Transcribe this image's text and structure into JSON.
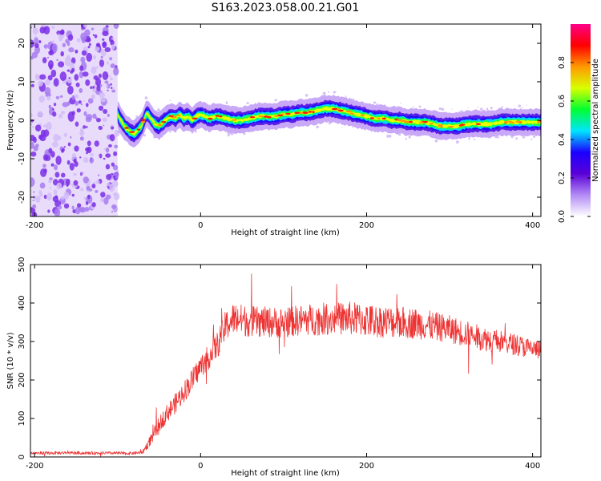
{
  "title": "S163.2023.058.00.21.G01",
  "chart_data": [
    {
      "type": "heatmap",
      "xlabel": "Height of straight line (km)",
      "ylabel": "Frequency (Hz)",
      "xlim": [
        -205,
        410
      ],
      "ylim": [
        -25,
        25
      ],
      "xticks": [
        -200,
        0,
        200,
        400
      ],
      "yticks": [
        -20,
        -10,
        0,
        10,
        20
      ],
      "colorbar": {
        "label": "Normalized spectral amplitude",
        "range": [
          0,
          1
        ],
        "ticks": [
          "0.0",
          "0.2",
          "0.4",
          "0.6",
          "0.8"
        ],
        "colormap": [
          "#ffffff",
          "#b38bf5",
          "#5a00d6",
          "#1a00ff",
          "#00e5ff",
          "#00ff30",
          "#d8ff00",
          "#ff9900",
          "#ff0000",
          "#ff0088"
        ]
      },
      "noise_region": {
        "x": [
          -205,
          -100
        ],
        "color": "#7a2ee6"
      },
      "ridge": {
        "x": [
          -100,
          -95,
          -90,
          -85,
          -80,
          -75,
          -70,
          -65,
          -60,
          -55,
          -50,
          -45,
          -40,
          -35,
          -30,
          -25,
          -20,
          -15,
          -10,
          -5,
          0,
          10,
          20,
          30,
          40,
          50,
          60,
          70,
          80,
          90,
          100,
          110,
          120,
          130,
          140,
          150,
          160,
          170,
          180,
          190,
          200,
          210,
          220,
          230,
          240,
          250,
          260,
          270,
          280,
          290,
          300,
          310,
          320,
          330,
          340,
          350,
          360,
          370,
          380,
          390,
          400,
          410
        ],
        "frequency": [
          1.5,
          -0.5,
          -2.0,
          -3.0,
          -3.5,
          -2.5,
          -1.0,
          2.0,
          0.5,
          -1.0,
          -1.5,
          -0.5,
          0.5,
          1.0,
          0.5,
          1.5,
          0.5,
          1.0,
          0.0,
          1.0,
          1.5,
          0.5,
          1.0,
          0.5,
          0.0,
          0.0,
          0.5,
          1.0,
          1.0,
          1.0,
          1.5,
          1.5,
          2.0,
          2.0,
          2.5,
          3.0,
          3.0,
          2.5,
          2.0,
          1.5,
          1.0,
          0.5,
          0.5,
          0.0,
          0.0,
          -0.5,
          -0.5,
          -0.5,
          -1.0,
          -1.5,
          -1.5,
          -1.5,
          -1.0,
          -1.0,
          -1.0,
          -1.0,
          -0.5,
          -0.5,
          -0.5,
          -0.5,
          -0.5,
          -0.5
        ]
      }
    },
    {
      "type": "line",
      "xlabel": "Height of straight line (km)",
      "ylabel": "SNR (10 * v/v)",
      "xlim": [
        -205,
        410
      ],
      "ylim": [
        0,
        500
      ],
      "xticks": [
        -200,
        0,
        200,
        400
      ],
      "yticks": [
        0,
        100,
        200,
        300,
        400,
        500
      ],
      "color": "#ee3333",
      "series": [
        {
          "x": [
            -205,
            -180,
            -160,
            -140,
            -120,
            -100,
            -90,
            -80,
            -70,
            -60,
            -50,
            -40,
            -30,
            -20,
            -10,
            0,
            10,
            20,
            25,
            30,
            40,
            50,
            60,
            80,
            100,
            120,
            140,
            160,
            180,
            200,
            220,
            240,
            260,
            280,
            300,
            320,
            340,
            360,
            380,
            400,
            410
          ],
          "values": [
            10,
            10,
            11,
            10,
            10,
            10,
            9,
            10,
            12,
            45,
            85,
            115,
            140,
            170,
            200,
            235,
            260,
            290,
            310,
            340,
            360,
            355,
            352,
            350,
            350,
            355,
            358,
            360,
            360,
            355,
            352,
            350,
            347,
            340,
            332,
            320,
            308,
            300,
            292,
            280,
            278
          ],
          "spread": [
            4,
            4,
            4,
            4,
            4,
            4,
            4,
            4,
            4,
            15,
            20,
            24,
            26,
            28,
            30,
            30,
            32,
            35,
            38,
            40,
            42,
            42,
            40,
            40,
            40,
            40,
            42,
            42,
            44,
            44,
            42,
            42,
            40,
            38,
            36,
            34,
            32,
            30,
            28,
            26,
            25
          ]
        }
      ]
    }
  ]
}
